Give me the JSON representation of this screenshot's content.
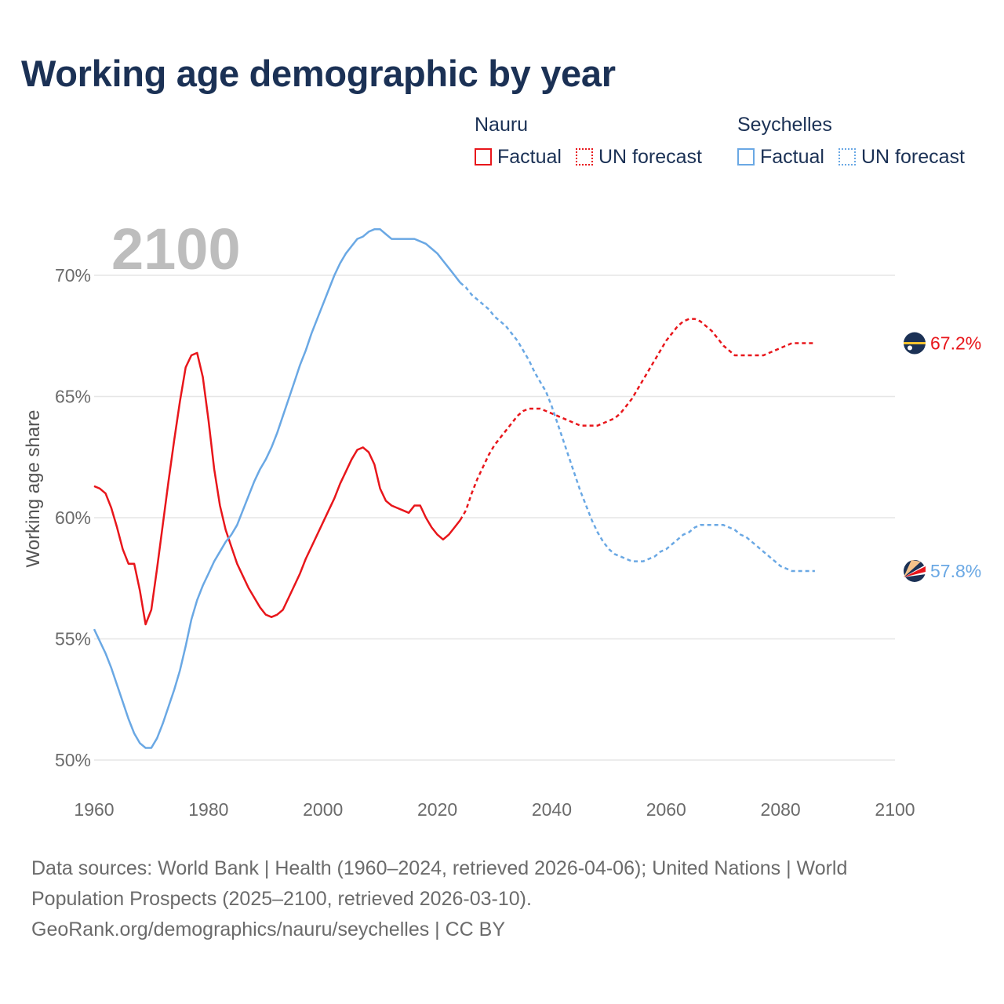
{
  "title": "Working age demographic by year",
  "legend": {
    "groups": [
      {
        "name": "Nauru",
        "color": "#e8161b",
        "factual_label": "Factual",
        "forecast_label": "UN forecast"
      },
      {
        "name": "Seychelles",
        "color": "#6aa8e4",
        "factual_label": "Factual",
        "forecast_label": "UN forecast"
      }
    ]
  },
  "footer": {
    "line1": "Data sources: World Bank | Health (1960–2024, retrieved 2026-04-06); United Nations | World",
    "line2": "Population Prospects (2025–2100, retrieved 2026-03-10).",
    "line3": "GeoRank.org/demographics/nauru/seychelles | CC BY"
  },
  "chart_data": {
    "type": "line",
    "title": "Working age demographic by year",
    "ylabel": "Working age share",
    "xlabel": "",
    "xlim": [
      1960,
      2100
    ],
    "ylim": [
      50,
      72
    ],
    "x_ticks": [
      1960,
      1980,
      2000,
      2020,
      2040,
      2060,
      2080,
      2100
    ],
    "x_tick_labels": [
      "1960",
      "1980",
      "2000",
      "2020",
      "2040",
      "2060",
      "2080",
      "2100"
    ],
    "y_ticks": [
      50,
      55,
      60,
      65,
      70
    ],
    "y_tick_labels": [
      "50%",
      "55%",
      "60%",
      "65%",
      "70%"
    ],
    "year_watermark": "2100",
    "forecast_start": 2024,
    "series": [
      {
        "name": "Nauru",
        "color": "#e8161b",
        "end_label": "67.2%",
        "points": [
          [
            1960,
            61.3
          ],
          [
            1961,
            61.2
          ],
          [
            1962,
            61.0
          ],
          [
            1963,
            60.4
          ],
          [
            1964,
            59.6
          ],
          [
            1965,
            58.7
          ],
          [
            1966,
            58.1
          ],
          [
            1967,
            58.1
          ],
          [
            1968,
            57.0
          ],
          [
            1969,
            55.6
          ],
          [
            1970,
            56.2
          ],
          [
            1971,
            57.9
          ],
          [
            1972,
            59.7
          ],
          [
            1973,
            61.5
          ],
          [
            1974,
            63.2
          ],
          [
            1975,
            64.8
          ],
          [
            1976,
            66.2
          ],
          [
            1977,
            66.7
          ],
          [
            1978,
            66.8
          ],
          [
            1979,
            65.8
          ],
          [
            1980,
            64.0
          ],
          [
            1981,
            62.0
          ],
          [
            1982,
            60.5
          ],
          [
            1983,
            59.5
          ],
          [
            1984,
            58.8
          ],
          [
            1985,
            58.1
          ],
          [
            1986,
            57.6
          ],
          [
            1987,
            57.1
          ],
          [
            1988,
            56.7
          ],
          [
            1989,
            56.3
          ],
          [
            1990,
            56.0
          ],
          [
            1991,
            55.9
          ],
          [
            1992,
            56.0
          ],
          [
            1993,
            56.2
          ],
          [
            1994,
            56.7
          ],
          [
            1995,
            57.2
          ],
          [
            1996,
            57.7
          ],
          [
            1997,
            58.3
          ],
          [
            1998,
            58.8
          ],
          [
            1999,
            59.3
          ],
          [
            2000,
            59.8
          ],
          [
            2001,
            60.3
          ],
          [
            2002,
            60.8
          ],
          [
            2003,
            61.4
          ],
          [
            2004,
            61.9
          ],
          [
            2005,
            62.4
          ],
          [
            2006,
            62.8
          ],
          [
            2007,
            62.9
          ],
          [
            2008,
            62.7
          ],
          [
            2009,
            62.2
          ],
          [
            2010,
            61.2
          ],
          [
            2011,
            60.7
          ],
          [
            2012,
            60.5
          ],
          [
            2013,
            60.4
          ],
          [
            2014,
            60.3
          ],
          [
            2015,
            60.2
          ],
          [
            2016,
            60.5
          ],
          [
            2017,
            60.5
          ],
          [
            2018,
            60.0
          ],
          [
            2019,
            59.6
          ],
          [
            2020,
            59.3
          ],
          [
            2021,
            59.1
          ],
          [
            2022,
            59.3
          ],
          [
            2023,
            59.6
          ],
          [
            2024,
            59.9
          ],
          [
            2025,
            60.3
          ],
          [
            2026,
            61.0
          ],
          [
            2027,
            61.6
          ],
          [
            2028,
            62.1
          ],
          [
            2029,
            62.6
          ],
          [
            2030,
            63.0
          ],
          [
            2031,
            63.3
          ],
          [
            2032,
            63.6
          ],
          [
            2033,
            63.9
          ],
          [
            2034,
            64.2
          ],
          [
            2035,
            64.4
          ],
          [
            2036,
            64.5
          ],
          [
            2037,
            64.5
          ],
          [
            2038,
            64.5
          ],
          [
            2039,
            64.4
          ],
          [
            2040,
            64.3
          ],
          [
            2041,
            64.2
          ],
          [
            2042,
            64.1
          ],
          [
            2043,
            64.0
          ],
          [
            2044,
            63.9
          ],
          [
            2045,
            63.8
          ],
          [
            2046,
            63.8
          ],
          [
            2047,
            63.8
          ],
          [
            2048,
            63.8
          ],
          [
            2049,
            63.9
          ],
          [
            2050,
            64.0
          ],
          [
            2051,
            64.1
          ],
          [
            2052,
            64.3
          ],
          [
            2053,
            64.6
          ],
          [
            2054,
            64.9
          ],
          [
            2055,
            65.3
          ],
          [
            2056,
            65.7
          ],
          [
            2057,
            66.1
          ],
          [
            2058,
            66.5
          ],
          [
            2059,
            66.9
          ],
          [
            2060,
            67.3
          ],
          [
            2061,
            67.6
          ],
          [
            2062,
            67.9
          ],
          [
            2063,
            68.1
          ],
          [
            2064,
            68.2
          ],
          [
            2065,
            68.2
          ],
          [
            2066,
            68.1
          ],
          [
            2067,
            67.9
          ],
          [
            2068,
            67.7
          ],
          [
            2069,
            67.4
          ],
          [
            2070,
            67.1
          ],
          [
            2071,
            66.9
          ],
          [
            2072,
            66.7
          ],
          [
            2073,
            66.7
          ],
          [
            2074,
            66.7
          ],
          [
            2075,
            66.7
          ],
          [
            2076,
            66.7
          ],
          [
            2077,
            66.7
          ],
          [
            2078,
            66.8
          ],
          [
            2079,
            66.9
          ],
          [
            2080,
            67.0
          ],
          [
            2081,
            67.1
          ],
          [
            2082,
            67.2
          ],
          [
            2083,
            67.2
          ],
          [
            2084,
            67.2
          ],
          [
            2085,
            67.2
          ],
          [
            2086,
            67.2
          ]
        ]
      },
      {
        "name": "Seychelles",
        "color": "#6aa8e4",
        "end_label": "57.8%",
        "points": [
          [
            1960,
            55.4
          ],
          [
            1961,
            54.9
          ],
          [
            1962,
            54.4
          ],
          [
            1963,
            53.8
          ],
          [
            1964,
            53.1
          ],
          [
            1965,
            52.4
          ],
          [
            1966,
            51.7
          ],
          [
            1967,
            51.1
          ],
          [
            1968,
            50.7
          ],
          [
            1969,
            50.5
          ],
          [
            1970,
            50.5
          ],
          [
            1971,
            50.9
          ],
          [
            1972,
            51.5
          ],
          [
            1973,
            52.2
          ],
          [
            1974,
            52.9
          ],
          [
            1975,
            53.7
          ],
          [
            1976,
            54.7
          ],
          [
            1977,
            55.8
          ],
          [
            1978,
            56.6
          ],
          [
            1979,
            57.2
          ],
          [
            1980,
            57.7
          ],
          [
            1981,
            58.2
          ],
          [
            1982,
            58.6
          ],
          [
            1983,
            59.0
          ],
          [
            1984,
            59.3
          ],
          [
            1985,
            59.7
          ],
          [
            1986,
            60.3
          ],
          [
            1987,
            60.9
          ],
          [
            1988,
            61.5
          ],
          [
            1989,
            62.0
          ],
          [
            1990,
            62.4
          ],
          [
            1991,
            62.9
          ],
          [
            1992,
            63.5
          ],
          [
            1993,
            64.2
          ],
          [
            1994,
            64.9
          ],
          [
            1995,
            65.6
          ],
          [
            1996,
            66.3
          ],
          [
            1997,
            66.9
          ],
          [
            1998,
            67.6
          ],
          [
            1999,
            68.2
          ],
          [
            2000,
            68.8
          ],
          [
            2001,
            69.4
          ],
          [
            2002,
            70.0
          ],
          [
            2003,
            70.5
          ],
          [
            2004,
            70.9
          ],
          [
            2005,
            71.2
          ],
          [
            2006,
            71.5
          ],
          [
            2007,
            71.6
          ],
          [
            2008,
            71.8
          ],
          [
            2009,
            71.9
          ],
          [
            2010,
            71.9
          ],
          [
            2011,
            71.7
          ],
          [
            2012,
            71.5
          ],
          [
            2013,
            71.5
          ],
          [
            2014,
            71.5
          ],
          [
            2015,
            71.5
          ],
          [
            2016,
            71.5
          ],
          [
            2017,
            71.4
          ],
          [
            2018,
            71.3
          ],
          [
            2019,
            71.1
          ],
          [
            2020,
            70.9
          ],
          [
            2021,
            70.6
          ],
          [
            2022,
            70.3
          ],
          [
            2023,
            70.0
          ],
          [
            2024,
            69.7
          ],
          [
            2025,
            69.5
          ],
          [
            2026,
            69.2
          ],
          [
            2027,
            69.0
          ],
          [
            2028,
            68.8
          ],
          [
            2029,
            68.6
          ],
          [
            2030,
            68.3
          ],
          [
            2031,
            68.1
          ],
          [
            2032,
            67.9
          ],
          [
            2033,
            67.6
          ],
          [
            2034,
            67.3
          ],
          [
            2035,
            66.9
          ],
          [
            2036,
            66.5
          ],
          [
            2037,
            66.0
          ],
          [
            2038,
            65.6
          ],
          [
            2039,
            65.2
          ],
          [
            2040,
            64.6
          ],
          [
            2041,
            63.9
          ],
          [
            2042,
            63.2
          ],
          [
            2043,
            62.5
          ],
          [
            2044,
            61.8
          ],
          [
            2045,
            61.1
          ],
          [
            2046,
            60.5
          ],
          [
            2047,
            59.9
          ],
          [
            2048,
            59.4
          ],
          [
            2049,
            59.0
          ],
          [
            2050,
            58.7
          ],
          [
            2051,
            58.5
          ],
          [
            2052,
            58.4
          ],
          [
            2053,
            58.3
          ],
          [
            2054,
            58.2
          ],
          [
            2055,
            58.2
          ],
          [
            2056,
            58.2
          ],
          [
            2057,
            58.3
          ],
          [
            2058,
            58.4
          ],
          [
            2059,
            58.6
          ],
          [
            2060,
            58.7
          ],
          [
            2061,
            58.9
          ],
          [
            2062,
            59.1
          ],
          [
            2063,
            59.3
          ],
          [
            2064,
            59.4
          ],
          [
            2065,
            59.6
          ],
          [
            2066,
            59.7
          ],
          [
            2067,
            59.7
          ],
          [
            2068,
            59.7
          ],
          [
            2069,
            59.7
          ],
          [
            2070,
            59.7
          ],
          [
            2071,
            59.6
          ],
          [
            2072,
            59.5
          ],
          [
            2073,
            59.3
          ],
          [
            2074,
            59.2
          ],
          [
            2075,
            59.0
          ],
          [
            2076,
            58.8
          ],
          [
            2077,
            58.6
          ],
          [
            2078,
            58.4
          ],
          [
            2079,
            58.2
          ],
          [
            2080,
            58.0
          ],
          [
            2081,
            57.9
          ],
          [
            2082,
            57.8
          ],
          [
            2083,
            57.8
          ],
          [
            2084,
            57.8
          ],
          [
            2085,
            57.8
          ],
          [
            2086,
            57.8
          ]
        ]
      }
    ]
  }
}
